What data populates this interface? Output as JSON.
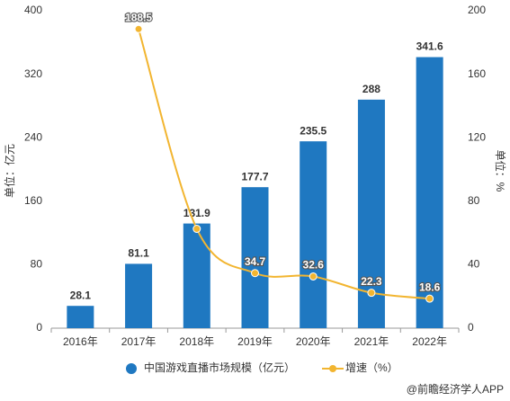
{
  "chart_data": {
    "type": "bar_line",
    "categories": [
      "2016年",
      "2017年",
      "2018年",
      "2019年",
      "2020年",
      "2021年",
      "2022年"
    ],
    "series": [
      {
        "name": "中国游戏直播市场规模（亿元）",
        "type": "bar",
        "color": "#1f78c1",
        "values": [
          28.1,
          81.1,
          131.9,
          177.7,
          235.5,
          288,
          341.6
        ]
      },
      {
        "name": "增速（%）",
        "type": "line",
        "axis": "y2",
        "color": "#f2b530",
        "values": [
          null,
          188.5,
          62.6,
          34.7,
          32.6,
          22.3,
          18.6
        ],
        "value_labels": [
          null,
          "188.5",
          null,
          "34.7",
          "32.6",
          "22.3",
          "18.6"
        ]
      }
    ],
    "ylabel": "单位：亿元",
    "y2label": "单位：%",
    "ylim": [
      0,
      400
    ],
    "yticks": [
      0,
      80,
      160,
      240,
      320,
      400
    ],
    "y2lim": [
      0,
      200
    ],
    "y2ticks": [
      0,
      40,
      80,
      120,
      160,
      200
    ],
    "legend": "bottom",
    "source": "@前瞻经济学人APP"
  }
}
